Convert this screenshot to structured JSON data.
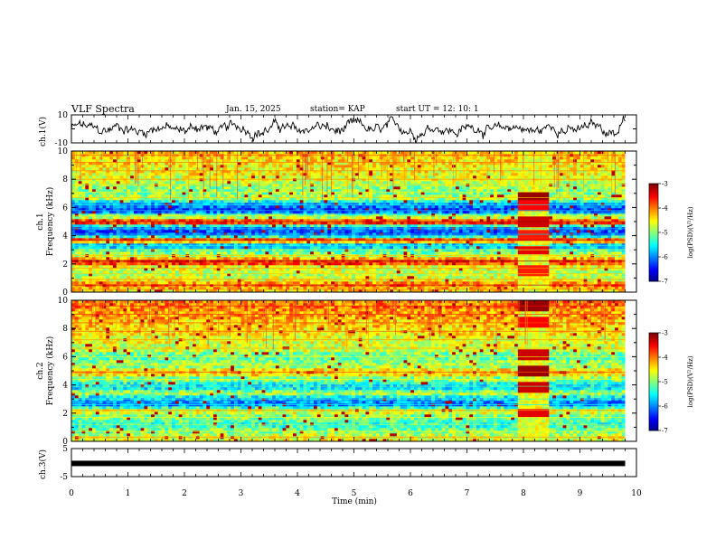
{
  "header": {
    "title": "VLF Spectra",
    "date": "Jan. 15, 2025",
    "station": "station= KAP",
    "start": "start  UT =   12: 10: 1"
  },
  "chart_data": [
    {
      "type": "line",
      "name": "ch1-waveform",
      "ylabel": "ch.1(V)",
      "ylim": [
        -10,
        10
      ],
      "yticks": [
        "10",
        "-10"
      ],
      "xlim": [
        0,
        10
      ]
    },
    {
      "type": "heatmap",
      "name": "ch1-spectrogram",
      "ylabel_line1": "ch.1",
      "ylabel_line2": "Frequency  (kHz)",
      "ylim": [
        0,
        10
      ],
      "yticks": [
        "0",
        "2",
        "4",
        "6",
        "8",
        "10"
      ],
      "xlim": [
        0,
        10
      ],
      "colorbar": {
        "label": "log(PSD)(V²/Hz)",
        "ticks": [
          "-3",
          "-4",
          "-5",
          "-6",
          "-7"
        ],
        "range": [
          -7,
          -3
        ]
      },
      "bands": [
        {
          "f": 0.2,
          "level": -4.4
        },
        {
          "f": 0.5,
          "level": -3.8
        },
        {
          "f": 0.9,
          "level": -4.6
        },
        {
          "f": 1.3,
          "level": -4.8
        },
        {
          "f": 1.7,
          "level": -4.6
        },
        {
          "f": 2.2,
          "level": -3.6
        },
        {
          "f": 2.6,
          "level": -4.8
        },
        {
          "f": 3.0,
          "level": -5.2
        },
        {
          "f": 3.3,
          "level": -5.9
        },
        {
          "f": 3.7,
          "level": -3.7
        },
        {
          "f": 4.1,
          "level": -6.2
        },
        {
          "f": 4.5,
          "level": -6.1
        },
        {
          "f": 5.0,
          "level": -3.6
        },
        {
          "f": 5.4,
          "level": -5.0
        },
        {
          "f": 5.8,
          "level": -6.3
        },
        {
          "f": 6.2,
          "level": -5.9
        },
        {
          "f": 6.7,
          "level": -4.8
        },
        {
          "f": 7.1,
          "level": -5.0
        },
        {
          "f": 7.6,
          "level": -4.9
        },
        {
          "f": 8.0,
          "level": -4.6
        },
        {
          "f": 8.6,
          "level": -4.5
        },
        {
          "f": 9.2,
          "level": -4.4
        },
        {
          "f": 9.7,
          "level": -4.3
        }
      ],
      "burst": {
        "t_start": 7.9,
        "t_end": 8.45,
        "levels": [
          {
            "f": 6.7,
            "level": -3.1
          },
          {
            "f": 6.2,
            "level": -3.5
          },
          {
            "f": 5.0,
            "level": -3.3
          },
          {
            "f": 4.0,
            "level": -3.6
          },
          {
            "f": 3.0,
            "level": -3.4
          },
          {
            "f": 1.5,
            "level": -3.6
          }
        ]
      }
    },
    {
      "type": "heatmap",
      "name": "ch2-spectrogram",
      "ylabel_line1": "ch.2",
      "ylabel_line2": "Frequency  (kHz)",
      "ylim": [
        0,
        10
      ],
      "yticks": [
        "0",
        "2",
        "4",
        "6",
        "8",
        "10"
      ],
      "xlim": [
        0,
        10
      ],
      "colorbar": {
        "label": "log(PSD)(V²/Hz)",
        "ticks": [
          "-3",
          "-4",
          "-5",
          "-6",
          "-7"
        ],
        "range": [
          -7,
          -3
        ]
      },
      "bands": [
        {
          "f": 0.3,
          "level": -4.6
        },
        {
          "f": 0.7,
          "level": -5.0
        },
        {
          "f": 1.2,
          "level": -5.3
        },
        {
          "f": 1.7,
          "level": -5.0
        },
        {
          "f": 2.2,
          "level": -4.6
        },
        {
          "f": 2.6,
          "level": -6.0
        },
        {
          "f": 3.0,
          "level": -5.8
        },
        {
          "f": 3.4,
          "level": -4.9
        },
        {
          "f": 3.9,
          "level": -5.6
        },
        {
          "f": 4.4,
          "level": -5.0
        },
        {
          "f": 4.9,
          "level": -4.3
        },
        {
          "f": 5.4,
          "level": -4.9
        },
        {
          "f": 6.0,
          "level": -5.1
        },
        {
          "f": 6.6,
          "level": -4.7
        },
        {
          "f": 7.2,
          "level": -4.6
        },
        {
          "f": 7.8,
          "level": -4.4
        },
        {
          "f": 8.4,
          "level": -4.3
        },
        {
          "f": 9.0,
          "level": -4.1
        },
        {
          "f": 9.6,
          "level": -4.0
        }
      ],
      "burst": {
        "t_start": 7.9,
        "t_end": 8.45,
        "levels": [
          {
            "f": 9.6,
            "level": -3.1
          },
          {
            "f": 8.4,
            "level": -3.5
          },
          {
            "f": 6.2,
            "level": -3.3
          },
          {
            "f": 5.0,
            "level": -3.1
          },
          {
            "f": 3.9,
            "level": -3.3
          },
          {
            "f": 2.0,
            "level": -3.4
          }
        ]
      }
    },
    {
      "type": "line",
      "name": "ch3-waveform",
      "ylabel": "ch.3(V)",
      "ylim": [
        -5,
        5
      ],
      "yticks": [
        "5",
        "-5"
      ],
      "xlim": [
        0,
        10
      ],
      "value": -0.3
    }
  ],
  "xaxis": {
    "label": "Time  (min)",
    "ticks": [
      "0",
      "1",
      "2",
      "3",
      "4",
      "5",
      "6",
      "7",
      "8",
      "9",
      "10"
    ]
  }
}
